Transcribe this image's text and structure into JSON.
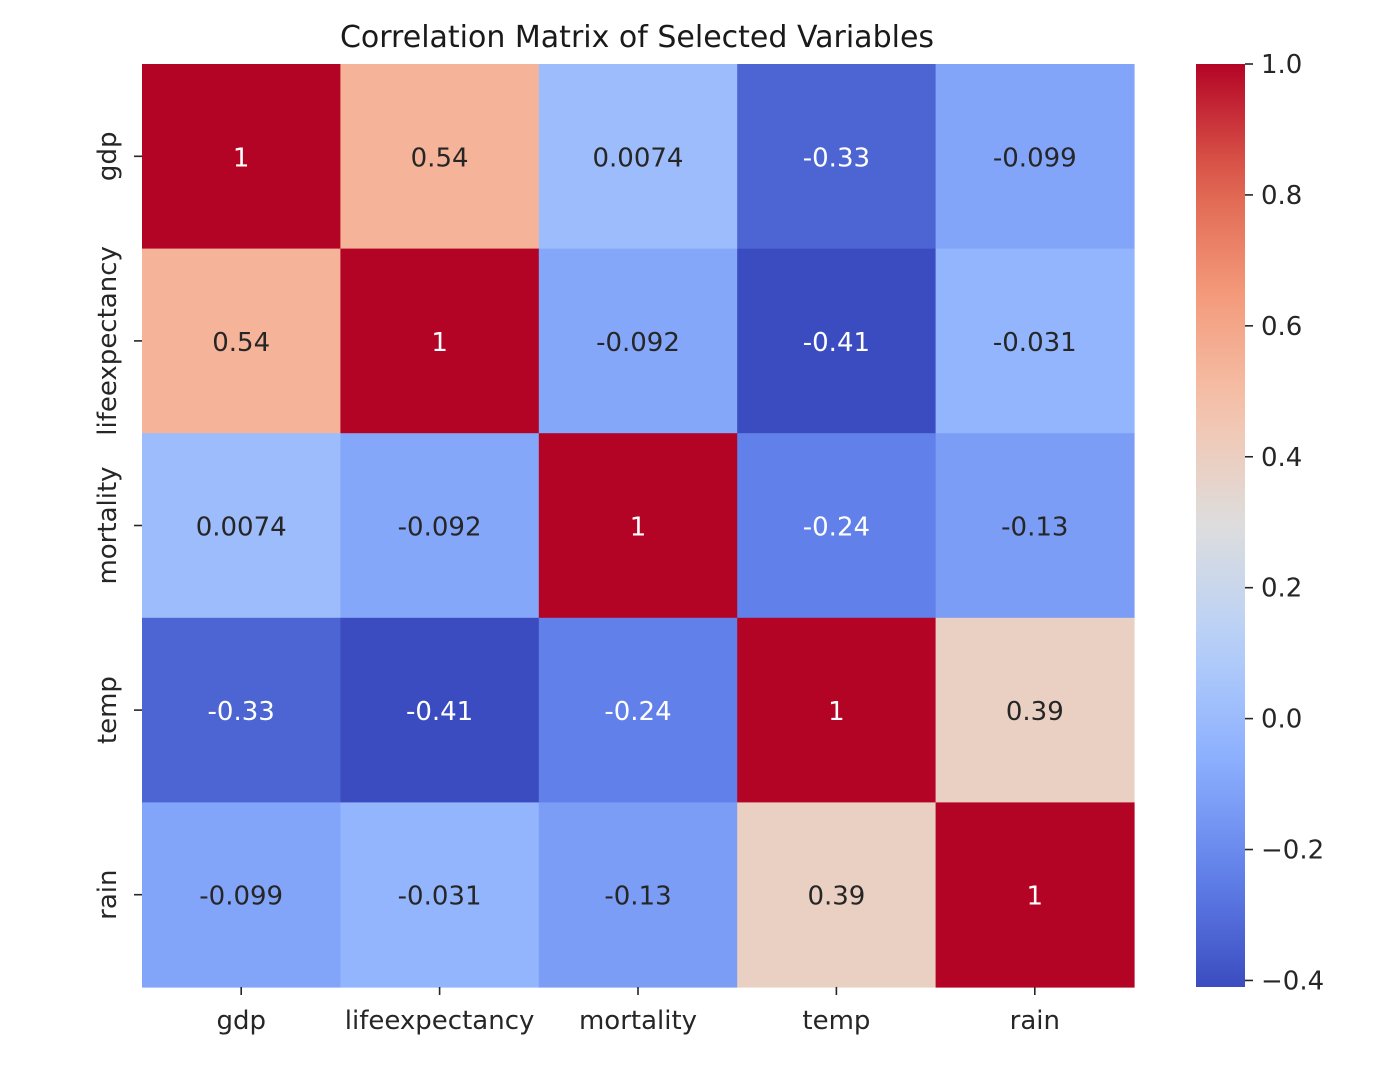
{
  "chart_data": {
    "type": "heatmap",
    "title": "Correlation Matrix of Selected Variables",
    "xlabel": "",
    "ylabel": "",
    "x_labels": [
      "gdp",
      "lifeexpectancy",
      "mortality",
      "temp",
      "rain"
    ],
    "y_labels": [
      "gdp",
      "lifeexpectancy",
      "mortality",
      "temp",
      "rain"
    ],
    "values": [
      [
        1,
        0.54,
        0.0074,
        -0.33,
        -0.099
      ],
      [
        0.54,
        1,
        -0.092,
        -0.41,
        -0.031
      ],
      [
        0.0074,
        -0.092,
        1,
        -0.24,
        -0.13
      ],
      [
        -0.33,
        -0.41,
        -0.24,
        1,
        0.39
      ],
      [
        -0.099,
        -0.031,
        -0.13,
        0.39,
        1
      ]
    ],
    "cell_labels": [
      [
        "1",
        "0.54",
        "0.0074",
        "-0.33",
        "-0.099"
      ],
      [
        "0.54",
        "1",
        "-0.092",
        "-0.41",
        "-0.031"
      ],
      [
        "0.0074",
        "-0.092",
        "1",
        "-0.24",
        "-0.13"
      ],
      [
        "-0.33",
        "-0.41",
        "-0.24",
        "1",
        "0.39"
      ],
      [
        "-0.099",
        "-0.031",
        "-0.13",
        "0.39",
        "1"
      ]
    ],
    "colormap": "coolwarm",
    "colorbar": {
      "vmin": -0.41,
      "vmax": 1.0,
      "ticks": [
        1.0,
        0.8,
        0.6,
        0.4,
        0.2,
        0.0,
        -0.2,
        -0.4
      ],
      "tick_labels": [
        "1.0",
        "0.8",
        "0.6",
        "0.4",
        "0.2",
        "0.0",
        "−0.2",
        "−0.4"
      ]
    }
  }
}
